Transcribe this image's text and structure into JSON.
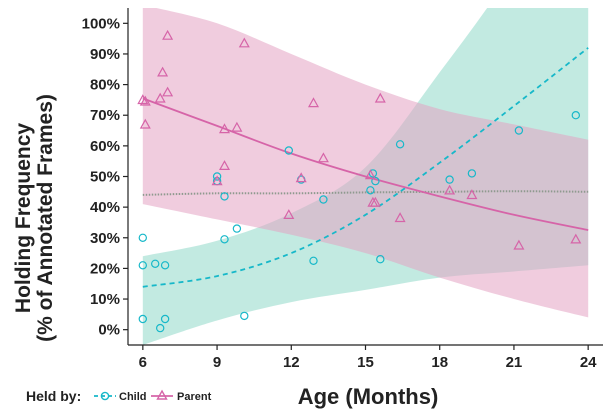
{
  "chart_data": {
    "type": "scatter",
    "xlabel": "Age (Months)",
    "ylabel": [
      "Holding Frequency",
      "(% of Annotated Frames)"
    ],
    "xlim": [
      5.4,
      24.6
    ],
    "ylim": [
      -5,
      105
    ],
    "xticks": [
      6,
      9,
      12,
      15,
      18,
      21,
      24
    ],
    "yticks": [
      0,
      10,
      20,
      30,
      40,
      50,
      60,
      70,
      80,
      90,
      100
    ],
    "ytick_labels": [
      "0%",
      "10%",
      "20%",
      "30%",
      "40%",
      "50%",
      "60%",
      "70%",
      "80%",
      "90%",
      "100%"
    ],
    "grid": false,
    "legend": {
      "title": "Held by:",
      "position": "bottom-left",
      "entries": [
        "Child",
        "Parent"
      ]
    },
    "colors": {
      "child": "#17b8c9",
      "parent": "#d664a8",
      "child_band": "#8fd8c8",
      "parent_band": "#e3a3c3",
      "overall": "#8f9a8f"
    },
    "series": [
      {
        "key": "child",
        "marker": "circle",
        "points": [
          [
            6.0,
            3.5
          ],
          [
            6.0,
            30
          ],
          [
            6.0,
            21
          ],
          [
            6.5,
            21.5
          ],
          [
            6.7,
            0.5
          ],
          [
            6.9,
            3.5
          ],
          [
            6.9,
            21
          ],
          [
            9.0,
            48.5
          ],
          [
            9.0,
            50
          ],
          [
            9.3,
            43.5
          ],
          [
            9.3,
            29.5
          ],
          [
            9.8,
            33
          ],
          [
            10.1,
            4.5
          ],
          [
            11.9,
            58.5
          ],
          [
            12.4,
            49
          ],
          [
            12.9,
            22.5
          ],
          [
            13.3,
            42.5
          ],
          [
            15.2,
            45.5
          ],
          [
            15.3,
            51
          ],
          [
            15.4,
            48.5
          ],
          [
            15.6,
            23
          ],
          [
            16.4,
            60.5
          ],
          [
            18.4,
            49
          ],
          [
            19.3,
            51
          ],
          [
            21.2,
            65
          ],
          [
            23.5,
            70
          ]
        ],
        "fit_line": [
          [
            6,
            14
          ],
          [
            9,
            17.5
          ],
          [
            12,
            25
          ],
          [
            15,
            37.5
          ],
          [
            18,
            54.5
          ],
          [
            21,
            73
          ],
          [
            24,
            92
          ]
        ],
        "band_upper": [
          [
            6,
            24
          ],
          [
            9,
            29
          ],
          [
            12,
            38
          ],
          [
            15,
            53
          ],
          [
            18,
            84
          ],
          [
            21,
            118
          ],
          [
            24,
            160
          ]
        ],
        "band_lower": [
          [
            6,
            -5
          ],
          [
            9,
            3
          ],
          [
            12,
            9
          ],
          [
            15,
            13
          ],
          [
            18,
            17
          ],
          [
            21,
            19
          ],
          [
            24,
            21
          ]
        ]
      },
      {
        "key": "parent",
        "marker": "triangle",
        "points": [
          [
            6.0,
            75
          ],
          [
            6.1,
            74.5
          ],
          [
            6.1,
            67
          ],
          [
            6.7,
            75.5
          ],
          [
            6.8,
            84
          ],
          [
            7.0,
            77.5
          ],
          [
            7.0,
            96
          ],
          [
            9.0,
            48.5
          ],
          [
            9.3,
            53.5
          ],
          [
            9.3,
            65.5
          ],
          [
            9.8,
            66
          ],
          [
            10.1,
            93.5
          ],
          [
            11.9,
            37.5
          ],
          [
            12.4,
            49.5
          ],
          [
            12.9,
            74
          ],
          [
            13.3,
            56
          ],
          [
            15.2,
            50.5
          ],
          [
            15.3,
            41.5
          ],
          [
            15.4,
            41.5
          ],
          [
            15.6,
            75.5
          ],
          [
            16.4,
            36.5
          ],
          [
            18.4,
            45.5
          ],
          [
            19.3,
            44
          ],
          [
            21.2,
            27.5
          ],
          [
            23.5,
            29.5
          ]
        ],
        "fit_line": [
          [
            6,
            75.5
          ],
          [
            9,
            66.5
          ],
          [
            12,
            57.5
          ],
          [
            15,
            50
          ],
          [
            18,
            43.5
          ],
          [
            21,
            37.5
          ],
          [
            24,
            32.5
          ]
        ],
        "band_upper": [
          [
            6,
            106
          ],
          [
            9,
            100
          ],
          [
            12,
            90
          ],
          [
            15,
            80
          ],
          [
            18,
            72
          ],
          [
            21,
            67
          ],
          [
            24,
            62
          ]
        ],
        "band_lower": [
          [
            6,
            41
          ],
          [
            9,
            36
          ],
          [
            12,
            31
          ],
          [
            15,
            25
          ],
          [
            18,
            17
          ],
          [
            21,
            10
          ],
          [
            24,
            4
          ]
        ]
      }
    ],
    "overall_line": [
      [
        6,
        44
      ],
      [
        9,
        44.5
      ],
      [
        12,
        44.5
      ],
      [
        15,
        44.8
      ],
      [
        18,
        45
      ],
      [
        21,
        45.2
      ],
      [
        24,
        45
      ]
    ]
  }
}
